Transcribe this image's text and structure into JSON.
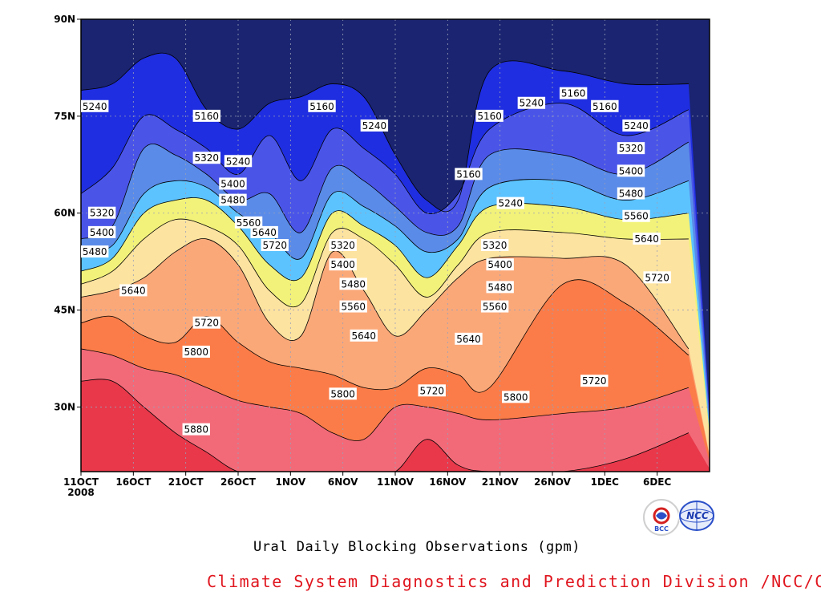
{
  "chart_data": {
    "type": "contour",
    "title": "Ural Daily Blocking Observations (gpm)",
    "xlabel": "",
    "ylabel": "",
    "x_ticks": [
      "11OCT",
      "16OCT",
      "21OCT",
      "26OCT",
      "1NOV",
      "6NOV",
      "11NOV",
      "16NOV",
      "21NOV",
      "26NOV",
      "1DEC",
      "6DEC"
    ],
    "x_year_label": "2008",
    "y_ticks": [
      "30N",
      "45N",
      "60N",
      "75N",
      "90N"
    ],
    "y_range_deg": [
      20,
      90
    ],
    "contour_levels": [
      5160,
      5240,
      5320,
      5400,
      5480,
      5560,
      5640,
      5720,
      5800,
      5880
    ],
    "level_colors": [
      "#1a2470",
      "#1f2ee0",
      "#4a55e8",
      "#5a8be8",
      "#5cc3ff",
      "#f2f27a",
      "#fde3a0",
      "#fba878",
      "#fb7c48",
      "#f26a78",
      "#e8384a"
    ],
    "contour_lines": [
      {
        "level": 5160,
        "lat": [
          79,
          80,
          84,
          84,
          76,
          73,
          77,
          78,
          80,
          78,
          69,
          62,
          62,
          82,
          82,
          80,
          80
        ]
      },
      {
        "level": 5240,
        "lat": [
          63,
          67,
          75,
          73,
          70,
          66,
          72,
          65,
          73,
          70,
          66,
          60,
          63,
          73,
          77,
          72,
          76
        ]
      },
      {
        "level": 5320,
        "lat": [
          56,
          58,
          70,
          69,
          66,
          62,
          63,
          57,
          67,
          65,
          61,
          57,
          58,
          69,
          69,
          66,
          71
        ]
      },
      {
        "level": 5400,
        "lat": [
          54,
          55,
          63,
          65,
          64,
          60,
          57,
          53,
          63,
          61,
          58,
          54,
          56,
          64,
          65,
          62,
          65
        ]
      },
      {
        "level": 5480,
        "lat": [
          51,
          53,
          60,
          62,
          62,
          58,
          52,
          50,
          60,
          58,
          55,
          50,
          55,
          61,
          61,
          59,
          60
        ]
      },
      {
        "level": 5560,
        "lat": [
          49,
          51,
          56,
          59,
          58,
          55,
          48,
          46,
          57,
          56,
          52,
          47,
          52,
          57,
          57,
          56,
          56
        ]
      },
      {
        "level": 5640,
        "lat": [
          47,
          48,
          50,
          54,
          56,
          52,
          43,
          41,
          54,
          48,
          41,
          45,
          50,
          53,
          53,
          52,
          39
        ]
      },
      {
        "level": 5720,
        "lat": [
          43,
          44,
          41,
          40,
          44,
          40,
          37,
          36,
          35,
          33,
          33,
          36,
          35,
          33,
          49,
          46,
          38
        ]
      },
      {
        "level": 5800,
        "lat": [
          39,
          38,
          36,
          35,
          33,
          31,
          30,
          29,
          26,
          25,
          30,
          30,
          29,
          28,
          29,
          30,
          33
        ]
      },
      {
        "level": 5880,
        "lat": [
          34,
          34,
          30,
          26,
          23,
          20,
          20,
          20,
          20,
          20,
          20,
          25,
          21,
          20,
          20,
          22,
          26
        ]
      }
    ],
    "contour_x_days": [
      0,
      3,
      6,
      9,
      12,
      15,
      18,
      21,
      24,
      27,
      30,
      33,
      36,
      39,
      46,
      52,
      58
    ],
    "contour_labels": [
      {
        "text": "5240",
        "day": 0.5,
        "lat": 76.5
      },
      {
        "text": "5160",
        "day": 12,
        "lat": 75
      },
      {
        "text": "5160",
        "day": 39,
        "lat": 75
      },
      {
        "text": "5320",
        "day": 12,
        "lat": 68.5
      },
      {
        "text": "5240",
        "day": 15,
        "lat": 68
      },
      {
        "text": "5400",
        "day": 14.5,
        "lat": 64.5
      },
      {
        "text": "5480",
        "day": 14.5,
        "lat": 62
      },
      {
        "text": "5560",
        "day": 16,
        "lat": 58.5
      },
      {
        "text": "5640",
        "day": 17.5,
        "lat": 57
      },
      {
        "text": "5720",
        "day": 18.5,
        "lat": 55
      },
      {
        "text": "5160",
        "day": 23,
        "lat": 76.5
      },
      {
        "text": "5240",
        "day": 28,
        "lat": 73.5
      },
      {
        "text": "5320",
        "day": 2,
        "lat": 60
      },
      {
        "text": "5400",
        "day": 2,
        "lat": 57
      },
      {
        "text": "5480",
        "day": 0,
        "lat": 54
      },
      {
        "text": "5640",
        "day": 5,
        "lat": 48
      },
      {
        "text": "5720",
        "day": 12,
        "lat": 43
      },
      {
        "text": "5800",
        "day": 11,
        "lat": 38.5
      },
      {
        "text": "5880",
        "day": 11,
        "lat": 26.5
      },
      {
        "text": "5320",
        "day": 25,
        "lat": 55
      },
      {
        "text": "5400",
        "day": 25,
        "lat": 52
      },
      {
        "text": "5480",
        "day": 26,
        "lat": 49
      },
      {
        "text": "5560",
        "day": 26,
        "lat": 45.5
      },
      {
        "text": "5640",
        "day": 27,
        "lat": 41
      },
      {
        "text": "5800",
        "day": 25,
        "lat": 32
      },
      {
        "text": "5160",
        "day": 37,
        "lat": 66
      },
      {
        "text": "5240",
        "day": 41,
        "lat": 61.5
      },
      {
        "text": "5320",
        "day": 39.5,
        "lat": 55
      },
      {
        "text": "5400",
        "day": 40,
        "lat": 52
      },
      {
        "text": "5480",
        "day": 40,
        "lat": 48.5
      },
      {
        "text": "5560",
        "day": 39.5,
        "lat": 45.5
      },
      {
        "text": "5640",
        "day": 37,
        "lat": 40.5
      },
      {
        "text": "5720",
        "day": 33.5,
        "lat": 32.5
      },
      {
        "text": "5800",
        "day": 41.5,
        "lat": 31.5
      },
      {
        "text": "5240",
        "day": 43,
        "lat": 77
      },
      {
        "text": "5160",
        "day": 47,
        "lat": 78.5
      },
      {
        "text": "5160",
        "day": 50,
        "lat": 76.5
      },
      {
        "text": "5240",
        "day": 53,
        "lat": 73.5
      },
      {
        "text": "5320",
        "day": 52.5,
        "lat": 70
      },
      {
        "text": "5400",
        "day": 52.5,
        "lat": 66.5
      },
      {
        "text": "5480",
        "day": 52.5,
        "lat": 63
      },
      {
        "text": "5560",
        "day": 53,
        "lat": 59.5
      },
      {
        "text": "5640",
        "day": 54,
        "lat": 56
      },
      {
        "text": "5720",
        "day": 55,
        "lat": 50
      },
      {
        "text": "5720",
        "day": 49,
        "lat": 34
      }
    ],
    "grid": true
  },
  "caption": "Ural Daily Blocking Observations (gpm)",
  "footer": "Climate System Diagnostics and Prediction Division /NCC/CMA",
  "logos": [
    {
      "name": "bcc-logo",
      "text": "BCC",
      "color": "#d42020"
    },
    {
      "name": "ncc-logo",
      "text": "NCC",
      "color": "#2a4fc8"
    }
  ]
}
